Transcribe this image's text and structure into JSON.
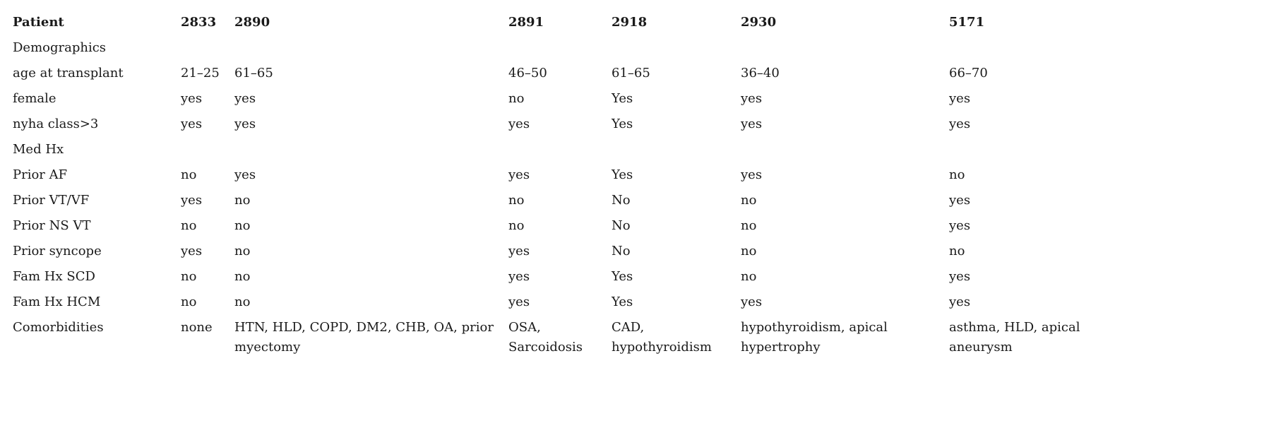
{
  "table": {
    "header": [
      "Patient",
      "2833",
      "2890",
      "2891",
      "2918",
      "2930",
      "5171"
    ],
    "rows": [
      [
        "Demographics",
        "",
        "",
        "",
        "",
        "",
        ""
      ],
      [
        "age at transplant",
        "21–25",
        "61–65",
        "46–50",
        "61–65",
        "36–40",
        "66–70"
      ],
      [
        "female",
        "yes",
        "yes",
        "no",
        "Yes",
        "yes",
        "yes"
      ],
      [
        "nyha class>3",
        "yes",
        "yes",
        "yes",
        "Yes",
        "yes",
        "yes"
      ],
      [
        "Med Hx",
        "",
        "",
        "",
        "",
        "",
        ""
      ],
      [
        "Prior AF",
        "no",
        "yes",
        "yes",
        "Yes",
        "yes",
        "no"
      ],
      [
        "Prior VT/VF",
        "yes",
        "no",
        "no",
        "No",
        "no",
        "yes"
      ],
      [
        "Prior NS VT",
        "no",
        "no",
        "no",
        "No",
        "no",
        "yes"
      ],
      [
        "Prior syncope",
        "yes",
        "no",
        "yes",
        "No",
        "no",
        "no"
      ],
      [
        "Fam Hx SCD",
        "no",
        "no",
        "yes",
        "Yes",
        "no",
        "yes"
      ],
      [
        "Fam Hx HCM",
        "no",
        "no",
        "yes",
        "Yes",
        "yes",
        "yes"
      ],
      [
        "Comorbidities",
        "none",
        "HTN, HLD, COPD, DM2, CHB, OA, prior myectomy",
        "OSA, Sarcoidosis",
        "CAD, hypothyroidism",
        "hypothyroidism, apical hypertrophy",
        "asthma, HLD, apical aneurysm"
      ]
    ]
  }
}
